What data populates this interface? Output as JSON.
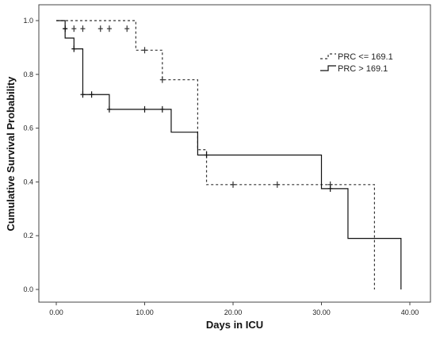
{
  "chart_data": {
    "type": "line",
    "subtype": "kaplan-meier",
    "xlabel": "Days in ICU",
    "ylabel": "Cumulative Survival Probability",
    "xlim": [
      -2,
      41
    ],
    "ylim": [
      -0.05,
      1.05
    ],
    "x_ticks": [
      0,
      10,
      20,
      30,
      40
    ],
    "x_tick_labels": [
      "0.00",
      "10.00",
      "20.00",
      "30.00",
      "40.00"
    ],
    "y_ticks": [
      0,
      0.2,
      0.4,
      0.6,
      0.8,
      1.0
    ],
    "y_tick_labels": [
      "0.0",
      "0.2",
      "0.4",
      "0.6",
      "0.8",
      "1.0"
    ],
    "grid": false,
    "legend_position": "top-right",
    "series": [
      {
        "name": "PRC <= 169.1",
        "line_style": "dashed",
        "color": "#333333",
        "steps": [
          {
            "x": 0,
            "y": 1.0
          },
          {
            "x": 9,
            "y": 0.89
          },
          {
            "x": 12,
            "y": 0.78
          },
          {
            "x": 16,
            "y": 0.52
          },
          {
            "x": 17,
            "y": 0.39
          },
          {
            "x": 36,
            "y": 0.0
          }
        ],
        "end_x": 36,
        "censored": [
          {
            "x": 1,
            "y": 0.97
          },
          {
            "x": 2,
            "y": 0.97
          },
          {
            "x": 3,
            "y": 0.97
          },
          {
            "x": 5,
            "y": 0.97
          },
          {
            "x": 6,
            "y": 0.97
          },
          {
            "x": 8,
            "y": 0.97
          },
          {
            "x": 10,
            "y": 0.89
          },
          {
            "x": 12,
            "y": 0.78
          },
          {
            "x": 20,
            "y": 0.39
          },
          {
            "x": 25,
            "y": 0.39
          },
          {
            "x": 31,
            "y": 0.39
          }
        ]
      },
      {
        "name": "PRC > 169.1",
        "line_style": "solid",
        "color": "#111111",
        "steps": [
          {
            "x": 0,
            "y": 1.0
          },
          {
            "x": 1,
            "y": 0.935
          },
          {
            "x": 2,
            "y": 0.895
          },
          {
            "x": 3,
            "y": 0.725
          },
          {
            "x": 6,
            "y": 0.67
          },
          {
            "x": 13,
            "y": 0.585
          },
          {
            "x": 16,
            "y": 0.5
          },
          {
            "x": 30,
            "y": 0.375
          },
          {
            "x": 33,
            "y": 0.19
          },
          {
            "x": 39,
            "y": 0.0
          }
        ],
        "end_x": 39,
        "censored": [
          {
            "x": 1,
            "y": 0.97
          },
          {
            "x": 2,
            "y": 0.895
          },
          {
            "x": 3,
            "y": 0.725
          },
          {
            "x": 4,
            "y": 0.725
          },
          {
            "x": 6,
            "y": 0.67
          },
          {
            "x": 10,
            "y": 0.67
          },
          {
            "x": 12,
            "y": 0.67
          },
          {
            "x": 17,
            "y": 0.5
          },
          {
            "x": 31,
            "y": 0.375
          }
        ]
      }
    ]
  }
}
